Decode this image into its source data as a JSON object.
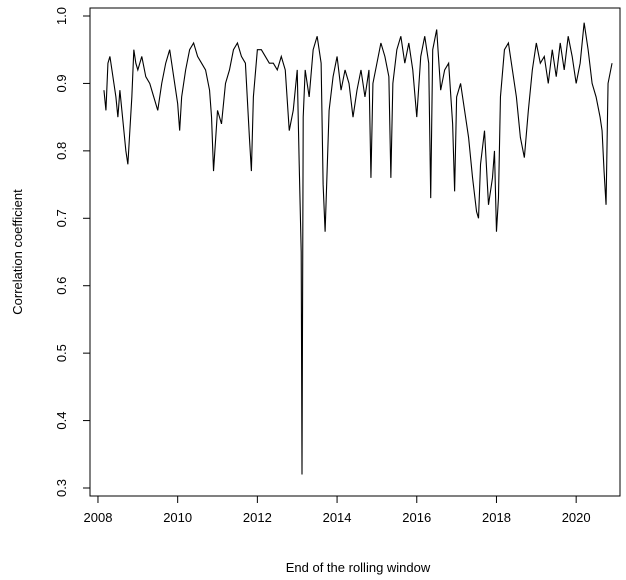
{
  "chart_data": {
    "type": "line",
    "title": "",
    "xlabel": "End of the rolling window",
    "ylabel": "Correlation coefficient",
    "xlim": [
      2007.8,
      2021.1
    ],
    "ylim": [
      0.3,
      1.0
    ],
    "xticks": [
      2008,
      2010,
      2012,
      2014,
      2016,
      2018,
      2020
    ],
    "yticks": [
      0.3,
      0.4,
      0.5,
      0.6,
      0.7,
      0.8,
      0.9,
      1.0
    ],
    "xtick_labels": [
      "2008",
      "2010",
      "2012",
      "2014",
      "2016",
      "2018",
      "2020"
    ],
    "ytick_labels": [
      "0.3",
      "0.4",
      "0.5",
      "0.6",
      "0.7",
      "0.8",
      "0.9",
      "1.0"
    ],
    "grid": false,
    "legend": "none",
    "series": [
      {
        "color": "#000000",
        "x": [
          2008.15,
          2008.2,
          2008.25,
          2008.3,
          2008.35,
          2008.4,
          2008.45,
          2008.5,
          2008.55,
          2008.6,
          2008.65,
          2008.7,
          2008.75,
          2008.8,
          2008.85,
          2008.9,
          2008.95,
          2009.0,
          2009.1,
          2009.2,
          2009.3,
          2009.4,
          2009.5,
          2009.6,
          2009.7,
          2009.8,
          2009.9,
          2010.0,
          2010.05,
          2010.1,
          2010.2,
          2010.3,
          2010.4,
          2010.5,
          2010.6,
          2010.7,
          2010.8,
          2010.85,
          2010.9,
          2011.0,
          2011.1,
          2011.2,
          2011.3,
          2011.4,
          2011.5,
          2011.6,
          2011.7,
          2011.8,
          2011.85,
          2011.9,
          2012.0,
          2012.1,
          2012.2,
          2012.3,
          2012.4,
          2012.5,
          2012.6,
          2012.7,
          2012.8,
          2012.9,
          2013.0,
          2013.05,
          2013.1,
          2013.12,
          2013.15,
          2013.2,
          2013.3,
          2013.4,
          2013.5,
          2013.6,
          2013.65,
          2013.7,
          2013.8,
          2013.9,
          2014.0,
          2014.1,
          2014.2,
          2014.3,
          2014.4,
          2014.5,
          2014.6,
          2014.7,
          2014.8,
          2014.85,
          2014.9,
          2015.0,
          2015.1,
          2015.2,
          2015.3,
          2015.35,
          2015.4,
          2015.5,
          2015.6,
          2015.7,
          2015.8,
          2015.9,
          2016.0,
          2016.1,
          2016.2,
          2016.3,
          2016.35,
          2016.4,
          2016.5,
          2016.6,
          2016.7,
          2016.8,
          2016.9,
          2016.95,
          2017.0,
          2017.1,
          2017.2,
          2017.3,
          2017.4,
          2017.5,
          2017.55,
          2017.6,
          2017.7,
          2017.8,
          2017.9,
          2017.95,
          2018.0,
          2018.05,
          2018.1,
          2018.2,
          2018.3,
          2018.4,
          2018.5,
          2018.6,
          2018.7,
          2018.8,
          2018.9,
          2019.0,
          2019.1,
          2019.2,
          2019.3,
          2019.4,
          2019.5,
          2019.6,
          2019.7,
          2019.8,
          2019.9,
          2020.0,
          2020.1,
          2020.2,
          2020.25,
          2020.3,
          2020.4,
          2020.5,
          2020.6,
          2020.65,
          2020.7,
          2020.75,
          2020.8,
          2020.9
        ],
        "values": [
          0.89,
          0.86,
          0.93,
          0.94,
          0.92,
          0.9,
          0.88,
          0.85,
          0.89,
          0.86,
          0.83,
          0.8,
          0.78,
          0.83,
          0.88,
          0.95,
          0.93,
          0.92,
          0.94,
          0.91,
          0.9,
          0.88,
          0.86,
          0.9,
          0.93,
          0.95,
          0.91,
          0.87,
          0.83,
          0.88,
          0.92,
          0.95,
          0.96,
          0.94,
          0.93,
          0.92,
          0.89,
          0.85,
          0.77,
          0.86,
          0.84,
          0.9,
          0.92,
          0.95,
          0.96,
          0.94,
          0.93,
          0.82,
          0.77,
          0.88,
          0.95,
          0.95,
          0.94,
          0.93,
          0.93,
          0.92,
          0.94,
          0.92,
          0.83,
          0.86,
          0.92,
          0.78,
          0.65,
          0.32,
          0.85,
          0.92,
          0.88,
          0.95,
          0.97,
          0.93,
          0.75,
          0.68,
          0.86,
          0.91,
          0.94,
          0.89,
          0.92,
          0.9,
          0.85,
          0.89,
          0.92,
          0.88,
          0.92,
          0.76,
          0.9,
          0.93,
          0.96,
          0.94,
          0.91,
          0.76,
          0.9,
          0.95,
          0.97,
          0.93,
          0.96,
          0.92,
          0.85,
          0.94,
          0.97,
          0.93,
          0.73,
          0.95,
          0.98,
          0.89,
          0.92,
          0.93,
          0.84,
          0.74,
          0.88,
          0.9,
          0.86,
          0.82,
          0.76,
          0.71,
          0.7,
          0.78,
          0.83,
          0.72,
          0.76,
          0.8,
          0.68,
          0.73,
          0.88,
          0.95,
          0.96,
          0.92,
          0.88,
          0.82,
          0.79,
          0.86,
          0.92,
          0.96,
          0.93,
          0.94,
          0.9,
          0.95,
          0.91,
          0.96,
          0.92,
          0.97,
          0.94,
          0.9,
          0.93,
          0.99,
          0.97,
          0.95,
          0.9,
          0.88,
          0.85,
          0.83,
          0.77,
          0.72,
          0.9,
          0.93
        ]
      }
    ]
  }
}
